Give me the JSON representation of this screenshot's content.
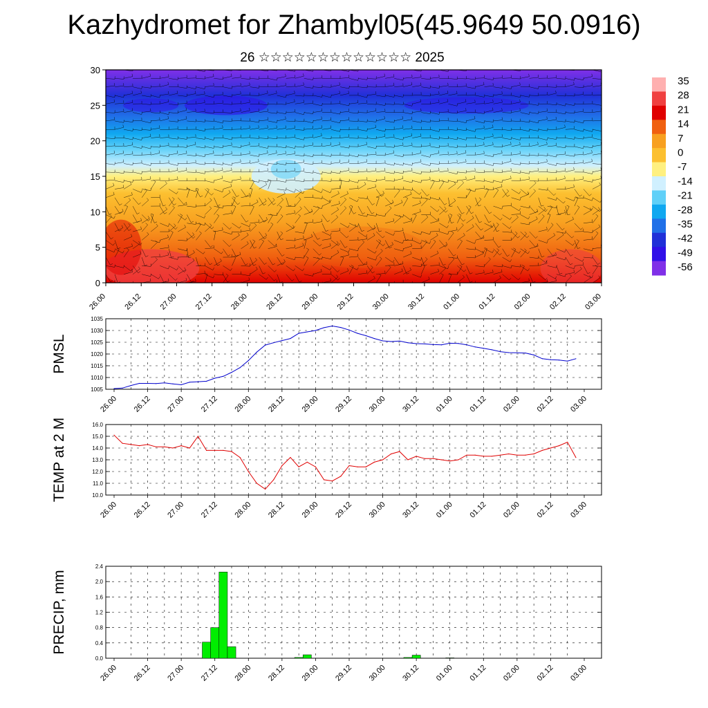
{
  "title": "Kazhydromet for Zhambyl05(45.9649 50.0916)",
  "subtitle": "26 ☆☆☆☆☆☆☆☆☆☆☆☆☆ 2025",
  "time_labels": [
    "26.00",
    "26.12",
    "27.00",
    "27.12",
    "28.00",
    "28.12",
    "29.00",
    "29.12",
    "30.00",
    "30.12",
    "01.00",
    "01.12",
    "02.00",
    "02.12",
    "03.00"
  ],
  "chart_data": [
    {
      "type": "heatmap",
      "name": "cross-section",
      "ylim": [
        0,
        30
      ],
      "yticks": [
        0,
        5,
        10,
        15,
        20,
        25,
        30
      ],
      "colorbar": {
        "labels": [
          "35",
          "28",
          "21",
          "14",
          "7",
          "0",
          "-7",
          "-14",
          "-21",
          "-28",
          "-35",
          "-42",
          "-49",
          "-56"
        ],
        "colors": [
          "#ffb0b0",
          "#f04040",
          "#e00000",
          "#f06010",
          "#f8a020",
          "#fcc030",
          "#fff080",
          "#d0f0ff",
          "#60d0f8",
          "#10a8f0",
          "#2070e8",
          "#2030d8",
          "#3010e8",
          "#8030e8"
        ]
      }
    },
    {
      "type": "line",
      "ylabel": "PMSL",
      "ylim": [
        1005,
        1035
      ],
      "yticks": [
        "1005",
        "1010",
        "1015",
        "1020",
        "1025",
        "1030",
        "1035"
      ],
      "color": "#0000cc",
      "x": [
        0,
        3,
        6,
        9,
        12,
        15,
        18,
        21,
        24,
        27,
        30,
        33,
        36,
        39,
        42,
        45,
        48,
        51,
        54,
        57,
        60,
        63,
        66,
        69,
        72,
        75,
        78,
        81,
        84,
        87,
        90,
        93,
        96,
        99,
        102,
        105,
        108,
        111,
        114,
        117,
        120,
        123,
        126,
        129,
        132,
        135,
        138,
        141,
        144,
        147,
        150,
        153,
        156,
        159,
        162,
        165
      ],
      "values": [
        1005.3,
        1005.5,
        1006.6,
        1007.5,
        1007.5,
        1007.4,
        1007.7,
        1007.3,
        1006.9,
        1008.0,
        1008.2,
        1008.4,
        1009.7,
        1010.5,
        1012.2,
        1014.2,
        1017.2,
        1020.8,
        1023.8,
        1024.8,
        1025.7,
        1026.6,
        1028.8,
        1029.4,
        1030.0,
        1031.2,
        1031.9,
        1031.3,
        1030.2,
        1028.8,
        1027.8,
        1026.6,
        1025.6,
        1025.3,
        1025.5,
        1024.8,
        1024.4,
        1024.3,
        1024.0,
        1023.9,
        1024.6,
        1024.5,
        1023.9,
        1023.0,
        1022.4,
        1021.8,
        1021.0,
        1020.6,
        1020.5,
        1020.4,
        1019.6,
        1018.0,
        1017.6,
        1017.4,
        1017.0,
        1018.0
      ]
    },
    {
      "type": "line",
      "ylabel": "TEMP at 2 M",
      "ylim": [
        10,
        16
      ],
      "yticks": [
        "10.0",
        "11.0",
        "12.0",
        "13.0",
        "14.0",
        "15.0",
        "16.0"
      ],
      "color": "#e00000",
      "x": [
        0,
        3,
        6,
        9,
        12,
        15,
        18,
        21,
        24,
        27,
        30,
        33,
        36,
        39,
        42,
        45,
        48,
        51,
        54,
        57,
        60,
        63,
        66,
        69,
        72,
        75,
        78,
        81,
        84,
        87,
        90,
        93,
        96,
        99,
        102,
        105,
        108,
        111,
        114,
        117,
        120,
        123,
        126,
        129,
        132,
        135,
        138,
        141,
        144,
        147,
        150,
        153,
        156,
        159,
        162,
        165
      ],
      "values": [
        15.1,
        14.4,
        14.3,
        14.2,
        14.3,
        14.1,
        14.1,
        14.0,
        14.2,
        14.0,
        15.0,
        13.8,
        13.8,
        13.8,
        13.7,
        13.2,
        12.0,
        11.0,
        10.5,
        11.3,
        12.5,
        13.2,
        12.4,
        12.8,
        12.4,
        11.3,
        11.2,
        11.6,
        12.5,
        12.4,
        12.4,
        12.8,
        13.0,
        13.5,
        13.7,
        13.0,
        13.3,
        13.1,
        13.1,
        13.0,
        12.9,
        13.0,
        13.4,
        13.4,
        13.3,
        13.3,
        13.4,
        13.5,
        13.4,
        13.4,
        13.5,
        13.8,
        14.0,
        14.2,
        14.5,
        13.2
      ]
    },
    {
      "type": "bar",
      "ylabel": "PRECIP, mm",
      "ylim": [
        0,
        2.4
      ],
      "yticks": [
        "0.0",
        "0.4",
        "0.8",
        "1.2",
        "1.6",
        "2.0",
        "2.4"
      ],
      "color": "#00ee00",
      "x": [
        33,
        36,
        39,
        42,
        66,
        69,
        105,
        108,
        120
      ],
      "values": [
        0.42,
        0.8,
        2.25,
        0.3,
        0.02,
        0.09,
        0.02,
        0.08,
        0.01
      ]
    }
  ]
}
